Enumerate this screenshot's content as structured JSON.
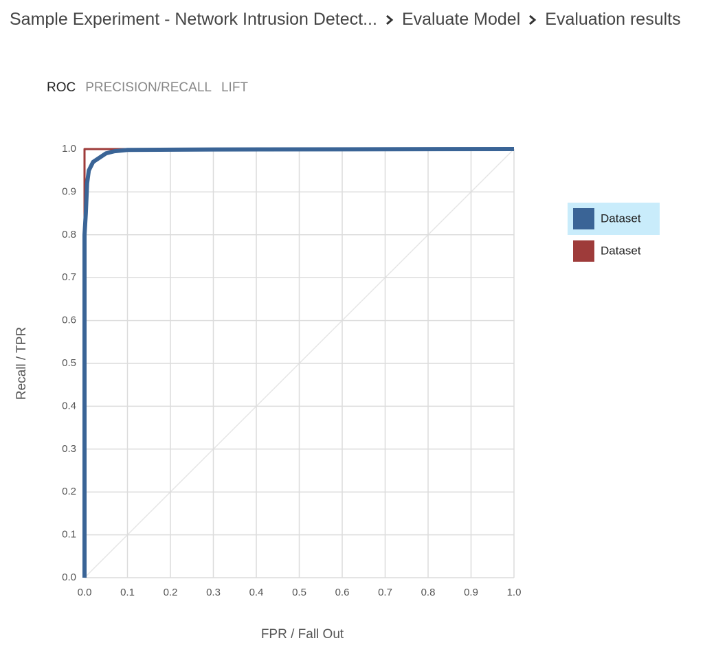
{
  "breadcrumb": [
    "Sample Experiment - Network Intrusion Detect...",
    "Evaluate Model",
    "Evaluation results"
  ],
  "tabs": [
    "ROC",
    "PRECISION/RECALL",
    "LIFT"
  ],
  "chart_data": {
    "type": "line",
    "xlabel": "FPR / Fall Out",
    "ylabel": "Recall / TPR",
    "xlim": [
      0,
      1
    ],
    "ylim": [
      0,
      1
    ],
    "xticks": [
      {
        "value": 0,
        "label": "0.0"
      },
      0.1,
      0.2,
      0.3,
      0.4,
      0.5,
      0.6,
      0.7,
      0.8,
      0.9,
      {
        "value": 1,
        "label": "1.0"
      }
    ],
    "yticks": [
      {
        "value": 0,
        "label": "0.0"
      },
      0.1,
      0.2,
      0.3,
      0.4,
      0.5,
      0.6,
      0.7,
      0.8,
      0.9,
      {
        "value": 1,
        "label": "1.0"
      }
    ],
    "grid": true,
    "series": [
      {
        "name": "Dataset",
        "color": "#3a6496",
        "x": [
          0,
          0,
          0.003,
          0.006,
          0.01,
          0.02,
          0.035,
          0.05,
          0.07,
          0.1,
          0.3,
          1
        ],
        "values": [
          0,
          0.8,
          0.85,
          0.92,
          0.95,
          0.97,
          0.98,
          0.99,
          0.995,
          0.998,
          0.999,
          1
        ]
      },
      {
        "name": "Dataset",
        "color": "#9e3b3a",
        "x": [
          0,
          0,
          1
        ],
        "values": [
          0,
          1,
          1
        ]
      }
    ]
  }
}
